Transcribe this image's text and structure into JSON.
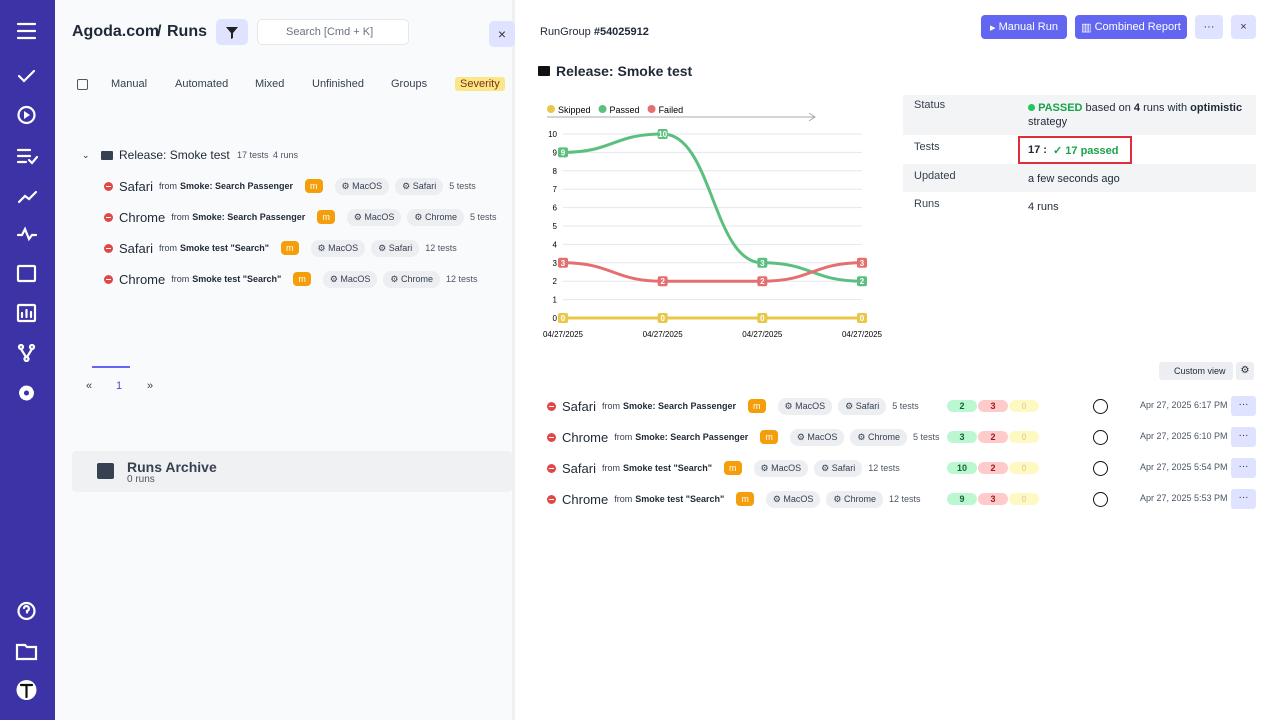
{
  "header": {
    "brand": "Agoda.com",
    "separator": "/",
    "title": "Runs",
    "search": "Search [Cmd + K]"
  },
  "tabs": [
    "Manual",
    "Automated",
    "Mixed",
    "Unfinished",
    "Groups",
    "Severity"
  ],
  "group": {
    "title": "Release: Smoke test",
    "tests": "17 tests",
    "runs": "4 runs"
  },
  "runs": [
    {
      "name": "Safari",
      "from": "from",
      "source": "Smoke: Search Passenger",
      "badge": "m",
      "tags": [
        "MacOS",
        "Safari"
      ],
      "tests": "5 tests"
    },
    {
      "name": "Chrome",
      "from": "from",
      "source": "Smoke: Search Passenger",
      "badge": "m",
      "tags": [
        "MacOS",
        "Chrome"
      ],
      "tests": "5 tests"
    },
    {
      "name": "Safari",
      "from": "from",
      "source": "Smoke test \"Search\"",
      "badge": "m",
      "tags": [
        "MacOS",
        "Safari"
      ],
      "tests": "12 tests"
    },
    {
      "name": "Chrome",
      "from": "from",
      "source": "Smoke test \"Search\"",
      "badge": "m",
      "tags": [
        "MacOS",
        "Chrome"
      ],
      "tests": "12 tests"
    }
  ],
  "pagination": [
    "«",
    "1",
    "»"
  ],
  "archive": {
    "title": "Runs Archive",
    "count": "0 runs"
  },
  "detail": {
    "label": "RunGroup",
    "id": "#54025912",
    "actions": [
      "Manual Run",
      "Combined Report"
    ],
    "title": "Release: Smoke test",
    "info": {
      "status_label": "Status",
      "status": "PASSED",
      "status_text_1": "based on",
      "status_runs": "4",
      "status_text_2": "runs with",
      "strategy": "optimistic",
      "status_text_3": "strategy",
      "tests_label": "Tests",
      "tests_total": "17 :",
      "tests_passed": "17 passed",
      "updated_label": "Updated",
      "updated": "a few seconds ago",
      "runs_label": "Runs",
      "runs": "4 runs"
    },
    "custom_view": "Custom view",
    "runs": [
      {
        "name": "Safari",
        "from": "from",
        "source": "Smoke: Search Passenger",
        "badge": "m",
        "tags": [
          "MacOS",
          "Safari"
        ],
        "tests": "5 tests",
        "passed": 2,
        "failed": 3,
        "skipped": 0,
        "date": "Apr 27, 2025 6:17 PM"
      },
      {
        "name": "Chrome",
        "from": "from",
        "source": "Smoke: Search Passenger",
        "badge": "m",
        "tags": [
          "MacOS",
          "Chrome"
        ],
        "tests": "5 tests",
        "passed": 3,
        "failed": 2,
        "skipped": 0,
        "date": "Apr 27, 2025 6:10 PM"
      },
      {
        "name": "Safari",
        "from": "from",
        "source": "Smoke test \"Search\"",
        "badge": "m",
        "tags": [
          "MacOS",
          "Safari"
        ],
        "tests": "12 tests",
        "passed": 10,
        "failed": 2,
        "skipped": 0,
        "date": "Apr 27, 2025 5:54 PM"
      },
      {
        "name": "Chrome",
        "from": "from",
        "source": "Smoke test \"Search\"",
        "badge": "m",
        "tags": [
          "MacOS",
          "Chrome"
        ],
        "tests": "12 tests",
        "passed": 9,
        "failed": 3,
        "skipped": 0,
        "date": "Apr 27, 2025 5:53 PM"
      }
    ]
  },
  "chart_data": {
    "type": "line",
    "categories": [
      "04/27/2025",
      "04/27/2025",
      "04/27/2025",
      "04/27/2025"
    ],
    "series": [
      {
        "name": "Skipped",
        "color": "#e9c74a",
        "values": [
          0,
          0,
          0,
          0
        ]
      },
      {
        "name": "Passed",
        "color": "#5cbf7f",
        "values": [
          9,
          10,
          3,
          2
        ]
      },
      {
        "name": "Failed",
        "color": "#e46f6f",
        "values": [
          3,
          2,
          2,
          3
        ]
      }
    ],
    "ylim": [
      0,
      10
    ],
    "yticks": [
      0,
      1,
      2,
      3,
      4,
      5,
      6,
      7,
      8,
      9,
      10
    ],
    "grid": true,
    "legend": "top"
  }
}
